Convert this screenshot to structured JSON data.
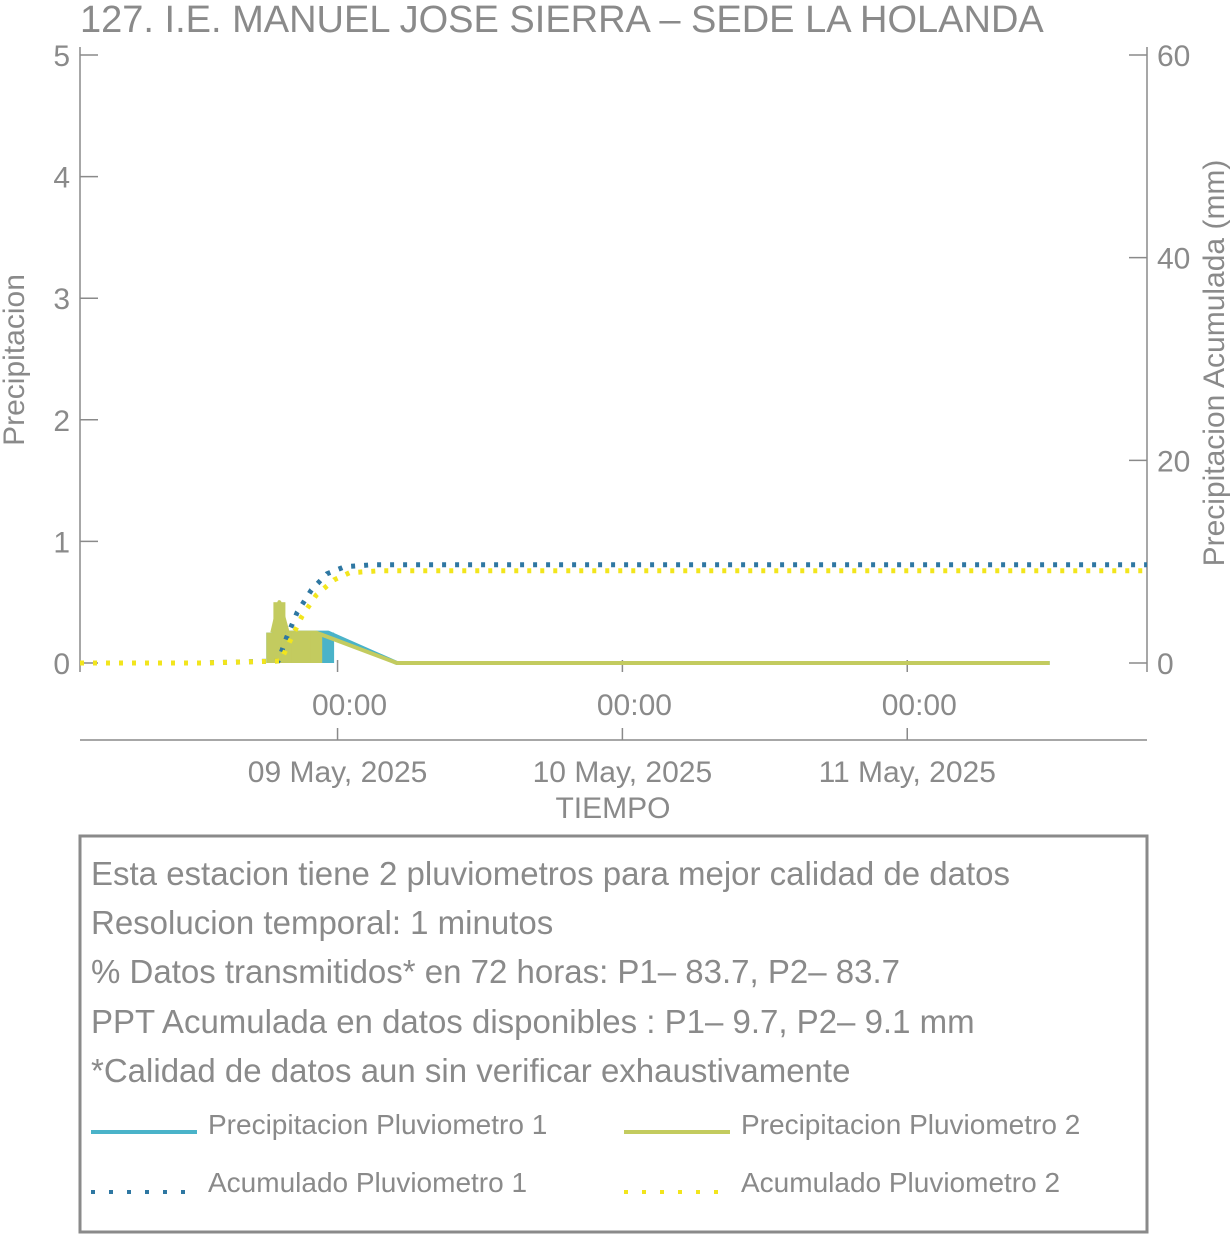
{
  "chart_data": {
    "type": "line",
    "title": "127. I.E. MANUEL JOSE SIERRA – SEDE LA HOLANDA",
    "xlabel": "TIEMPO",
    "ylabel_left": "Precipitacion",
    "ylabel_right": "Precipitacion Acumulada (mm)",
    "ylim_left": [
      0,
      5
    ],
    "ylim_right": [
      0,
      60
    ],
    "yticks_left": [
      0,
      1,
      2,
      3,
      4,
      5
    ],
    "yticks_right": [
      0,
      20,
      40,
      60
    ],
    "xlim_hours": [
      -21.7,
      68.2
    ],
    "x_ticks": [
      {
        "time": "00:00",
        "date": "09 May, 2025"
      },
      {
        "time": "00:00",
        "date": "10 May, 2025"
      },
      {
        "time": "00:00",
        "date": "11 May, 2025"
      }
    ],
    "grid": false,
    "series": [
      {
        "name": "Precipitacion Pluviometro 1",
        "axis": "left",
        "color": "#4ab3c9",
        "style": "solid",
        "x": [
          -5.5,
          -3.5,
          -2.5,
          -1.5,
          -0.8,
          5,
          30,
          60
        ],
        "y": [
          0.25,
          0.25,
          0.25,
          0.25,
          0.25,
          0.0,
          0.0,
          0.0
        ]
      },
      {
        "name": "Precipitacion Pluviometro 2",
        "axis": "left",
        "color": "#c3cb5f",
        "style": "solid",
        "x": [
          -5.5,
          -4.9,
          -4.2,
          -3.4,
          -2.5,
          -1.8,
          5,
          30,
          60
        ],
        "y": [
          0.25,
          0.5,
          0.25,
          0.25,
          0.25,
          0.25,
          0.0,
          0.0,
          0.0
        ]
      },
      {
        "name": "Acumulado Pluviometro 1",
        "axis": "right",
        "color": "#2e77a2",
        "style": "dotted",
        "x": [
          -21.7,
          -11.5,
          -5.0,
          -4.3,
          -3.4,
          -2.2,
          -0.9,
          0.6,
          3.0,
          68.2
        ],
        "y": [
          0,
          0,
          0.2,
          2.5,
          5.0,
          7.2,
          8.8,
          9.5,
          9.7,
          9.7
        ]
      },
      {
        "name": "Acumulado Pluviometro 2",
        "axis": "right",
        "color": "#f2e51c",
        "style": "dotted",
        "x": [
          -21.7,
          -11.5,
          -4.8,
          -4.0,
          -3.0,
          -1.8,
          -0.3,
          1.0,
          3.5,
          68.2
        ],
        "y": [
          0,
          0,
          0.2,
          2.2,
          4.6,
          6.7,
          8.2,
          8.9,
          9.1,
          9.1
        ]
      }
    ]
  },
  "info": {
    "line1": "Esta estacion tiene 2 pluviometros para mejor calidad de datos",
    "line2": "Resolucion temporal: 1 minutos",
    "line3": "% Datos transmitidos* en 72 horas: P1– 83.7, P2– 83.7",
    "line4": "PPT Acumulada en datos disponibles : P1–  9.7, P2–  9.1 mm",
    "line5": "*Calidad de datos aun sin verificar exhaustivamente"
  },
  "colors": {
    "axis": "#8a8a8a",
    "p1": "#4ab3c9",
    "p2": "#c3cb5f",
    "acc1": "#2e77a2",
    "acc2": "#f2e51c"
  }
}
